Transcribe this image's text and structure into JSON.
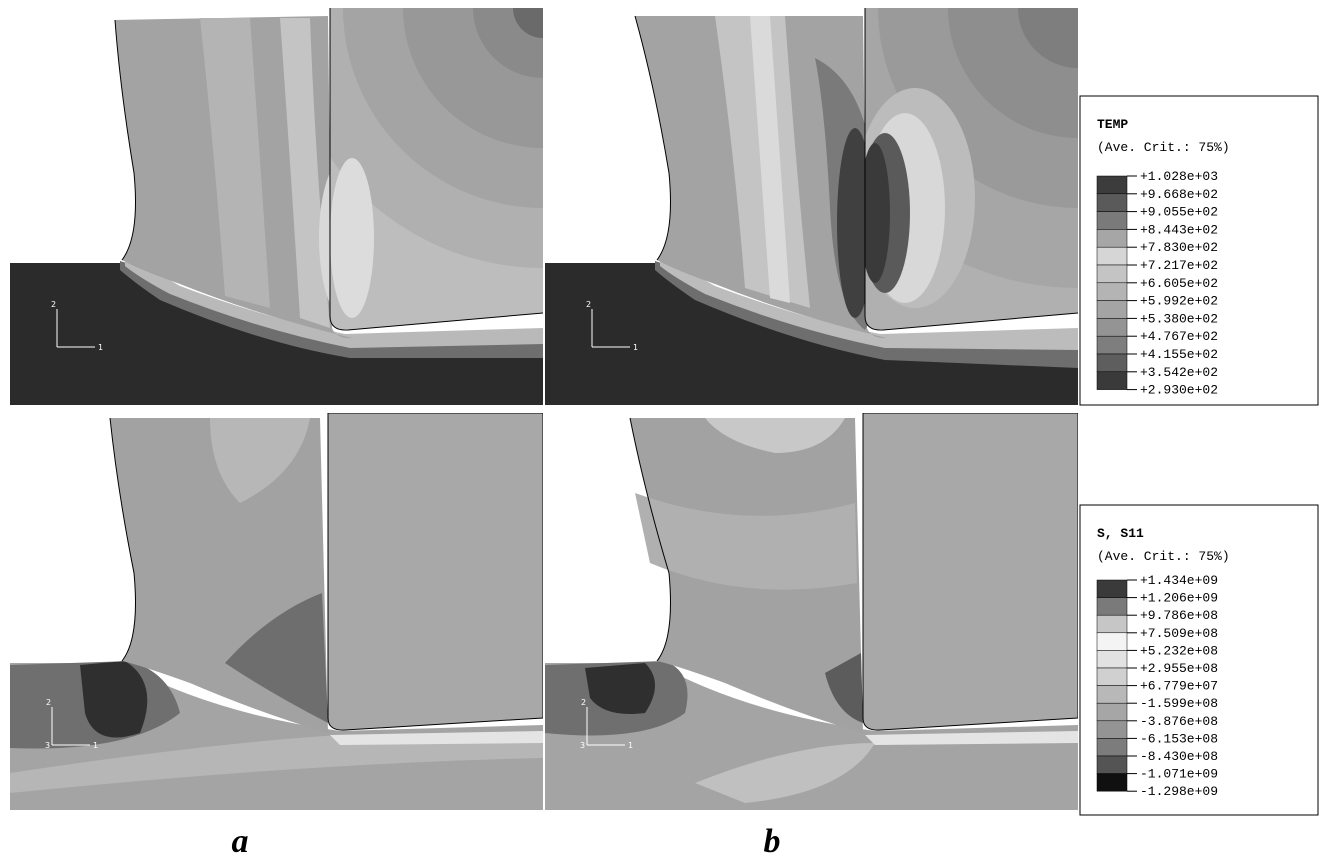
{
  "legends": [
    {
      "title": "TEMP",
      "subtitle": "(Ave. Crit.: 75%)",
      "values": [
        "+1.028e+03",
        "+9.668e+02",
        "+9.055e+02",
        "+8.443e+02",
        "+7.830e+02",
        "+7.217e+02",
        "+6.605e+02",
        "+5.992e+02",
        "+5.380e+02",
        "+4.767e+02",
        "+4.155e+02",
        "+3.542e+02",
        "+2.930e+02"
      ]
    },
    {
      "title": "S, S11",
      "subtitle": "(Ave. Crit.: 75%)",
      "values": [
        "+1.434e+09",
        "+1.206e+09",
        "+9.786e+08",
        "+7.509e+08",
        "+5.232e+08",
        "+2.955e+08",
        "+6.779e+07",
        "-1.599e+08",
        "-3.876e+08",
        "-6.153e+08",
        "-8.430e+08",
        "-1.071e+09",
        "-1.298e+09"
      ]
    }
  ],
  "panels": [
    {
      "label": "a"
    },
    {
      "label": "b"
    }
  ],
  "triads": [
    {
      "labels": [
        "2",
        "1"
      ]
    },
    {
      "labels": [
        "2",
        "1"
      ]
    },
    {
      "labels": [
        "2",
        "3",
        "1"
      ]
    },
    {
      "labels": [
        "2",
        "3",
        "1"
      ]
    }
  ]
}
